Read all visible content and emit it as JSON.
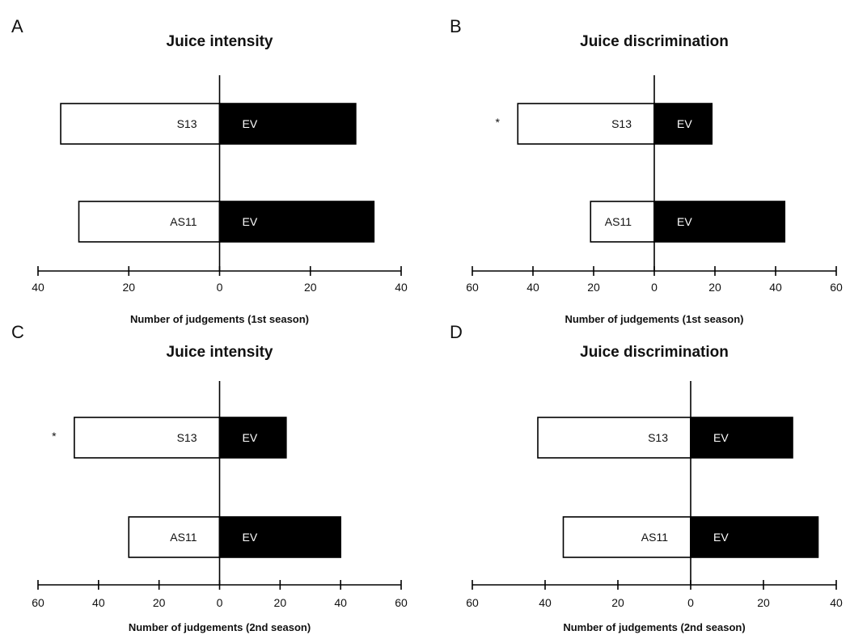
{
  "figure": {
    "panels": [
      "A",
      "B",
      "C",
      "D"
    ]
  },
  "chart_data": [
    {
      "panel": "A",
      "type": "bar",
      "orientation": "horizontal-diverging",
      "title": "Juice intensity",
      "xlabel": "Number of judgements (1st season)",
      "xticks": [
        "40",
        "20",
        "0",
        "20",
        "40"
      ],
      "xlim": [
        -40,
        40
      ],
      "colors": {
        "left": "#ffffff",
        "right": "#000000",
        "stroke": "#000000"
      },
      "rows": [
        {
          "left_label": "S13",
          "right_label": "EV",
          "left_value": 35,
          "right_value": 30,
          "significance": ""
        },
        {
          "left_label": "AS11",
          "right_label": "EV",
          "left_value": 31,
          "right_value": 34,
          "significance": ""
        }
      ]
    },
    {
      "panel": "B",
      "type": "bar",
      "orientation": "horizontal-diverging",
      "title": "Juice discrimination",
      "xlabel": "Number of judgements (1st season)",
      "xticks": [
        "60",
        "40",
        "20",
        "0",
        "20",
        "40",
        "60"
      ],
      "xlim": [
        -60,
        60
      ],
      "colors": {
        "left": "#ffffff",
        "right": "#000000",
        "stroke": "#000000"
      },
      "rows": [
        {
          "left_label": "S13",
          "right_label": "EV",
          "left_value": 45,
          "right_value": 19,
          "significance": "*"
        },
        {
          "left_label": "AS11",
          "right_label": "EV",
          "left_value": 21,
          "right_value": 43,
          "significance": ""
        }
      ]
    },
    {
      "panel": "C",
      "type": "bar",
      "orientation": "horizontal-diverging",
      "title": "Juice intensity",
      "xlabel": "Number of judgements (2nd season)",
      "xticks": [
        "60",
        "40",
        "20",
        "0",
        "20",
        "40",
        "60"
      ],
      "xlim": [
        -60,
        60
      ],
      "colors": {
        "left": "#ffffff",
        "right": "#000000",
        "stroke": "#000000"
      },
      "rows": [
        {
          "left_label": "S13",
          "right_label": "EV",
          "left_value": 48,
          "right_value": 22,
          "significance": "*"
        },
        {
          "left_label": "AS11",
          "right_label": "EV",
          "left_value": 30,
          "right_value": 40,
          "significance": ""
        }
      ]
    },
    {
      "panel": "D",
      "type": "bar",
      "orientation": "horizontal-diverging",
      "title": "Juice discrimination",
      "xlabel": "Number of judgements (2nd season)",
      "xticks": [
        "60",
        "40",
        "20",
        "0",
        "20",
        "40"
      ],
      "xlim": [
        -60,
        40
      ],
      "colors": {
        "left": "#ffffff",
        "right": "#000000",
        "stroke": "#000000"
      },
      "rows": [
        {
          "left_label": "S13",
          "right_label": "EV",
          "left_value": 42,
          "right_value": 28,
          "significance": ""
        },
        {
          "left_label": "AS11",
          "right_label": "EV",
          "left_value": 35,
          "right_value": 35,
          "significance": ""
        }
      ]
    }
  ]
}
